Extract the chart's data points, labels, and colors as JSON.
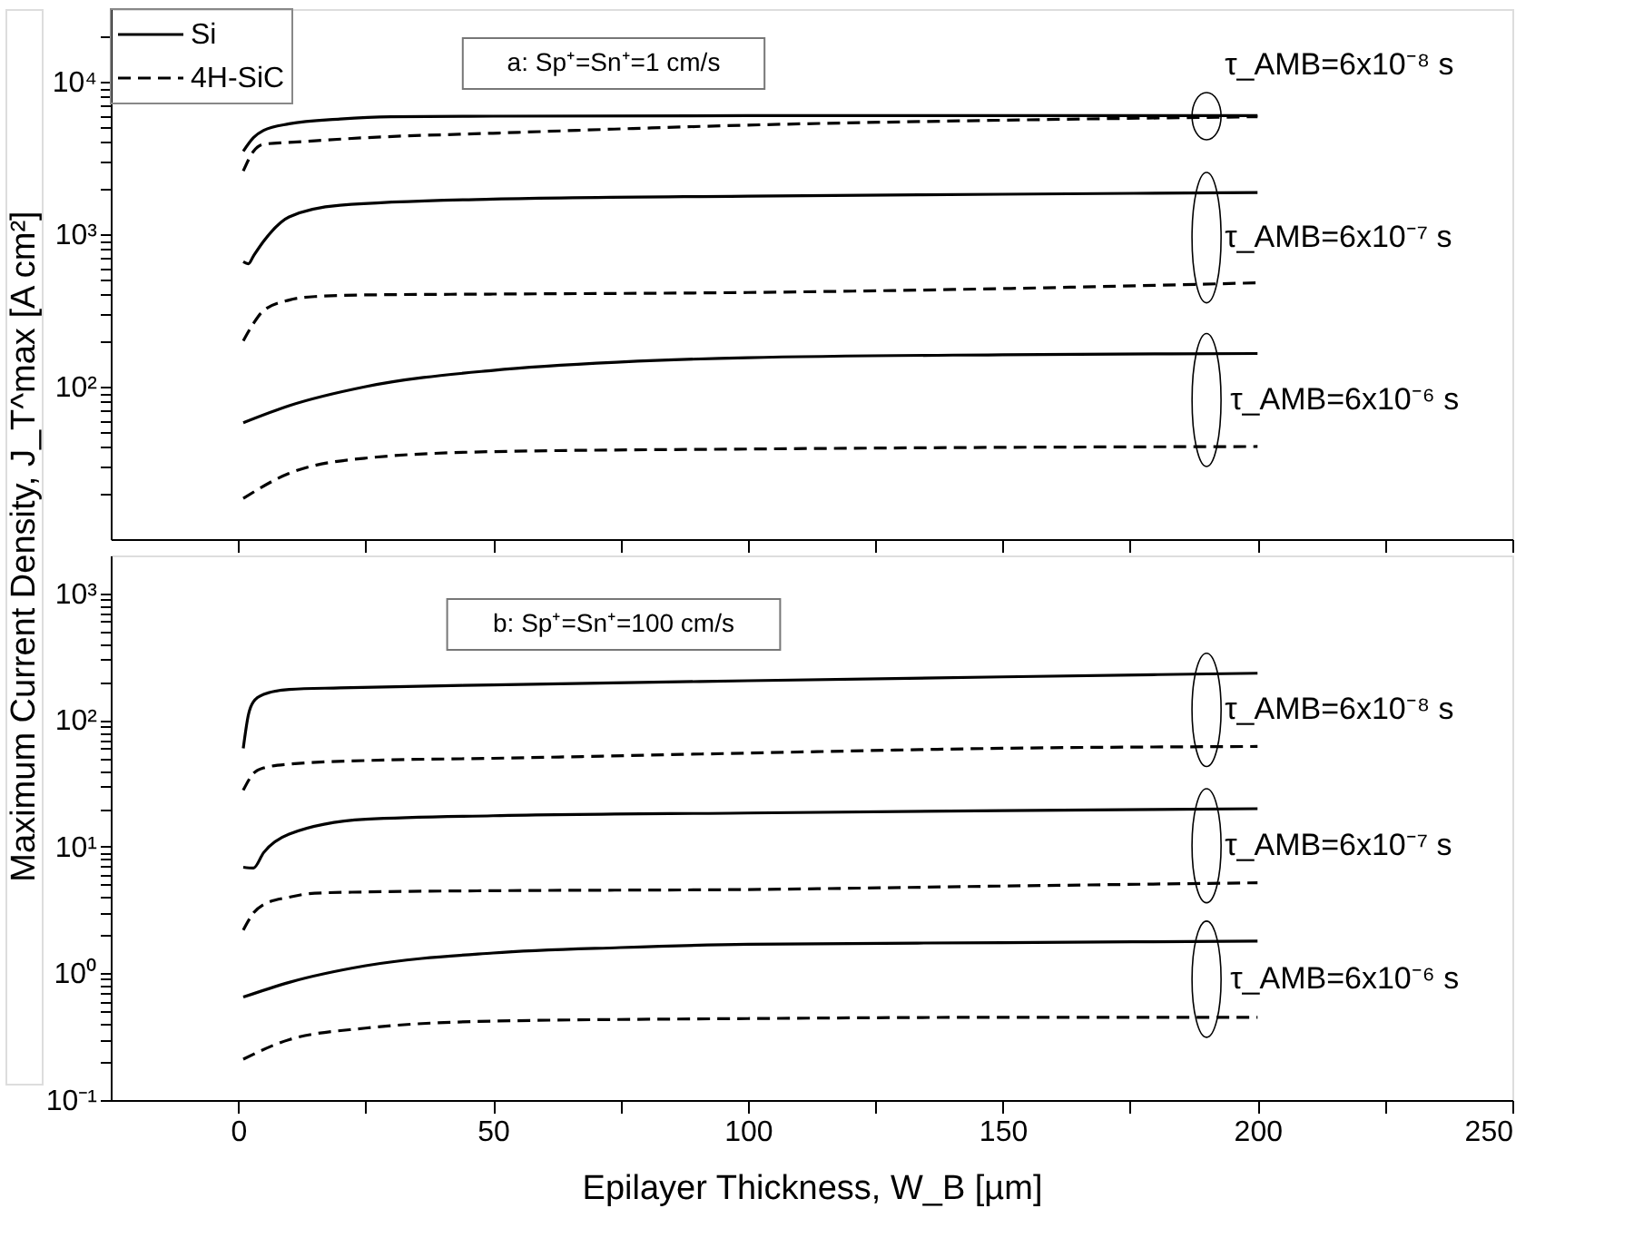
{
  "chart_data": [
    {
      "type": "line",
      "ylabel": "Maximum Current Density, J_T^max [A cm²]",
      "log": true,
      "grid": false,
      "legend": "top left",
      "tick_labels": "y",
      "xlim": [
        -25,
        250
      ],
      "xticks": [
        0,
        {
          "value": 25,
          "label": null
        },
        50,
        {
          "value": 75,
          "label": null
        },
        100,
        {
          "value": 125,
          "label": null
        },
        150,
        {
          "value": 175,
          "label": null
        },
        200,
        {
          "value": 225,
          "label": null
        },
        250
      ],
      "ylim": [
        10,
        30000
      ],
      "yticks": [
        {
          "value": 20,
          "label": null
        },
        {
          "value": 30,
          "label": null
        },
        {
          "value": 40,
          "label": null
        },
        {
          "value": 50,
          "label": null
        },
        {
          "value": 60,
          "label": null
        },
        {
          "value": 70,
          "label": null
        },
        {
          "value": 80,
          "label": null
        },
        {
          "value": 90,
          "label": null
        },
        {
          "value": 100,
          "label": "10²"
        },
        {
          "value": 200,
          "label": null
        },
        {
          "value": 300,
          "label": null
        },
        {
          "value": 400,
          "label": null
        },
        {
          "value": 500,
          "label": null
        },
        {
          "value": 600,
          "label": null
        },
        {
          "value": 700,
          "label": null
        },
        {
          "value": 800,
          "label": null
        },
        {
          "value": 900,
          "label": null
        },
        {
          "value": 1000,
          "label": "10³"
        },
        {
          "value": 2000,
          "label": null
        },
        {
          "value": 3000,
          "label": null
        },
        {
          "value": 4000,
          "label": null
        },
        {
          "value": 5000,
          "label": null
        },
        {
          "value": 6000,
          "label": null
        },
        {
          "value": 7000,
          "label": null
        },
        {
          "value": 8000,
          "label": null
        },
        {
          "value": 9000,
          "label": null
        },
        {
          "value": 10000,
          "label": "10⁴"
        },
        {
          "value": 20000,
          "label": null
        }
      ],
      "series": [
        {
          "name": "Si",
          "color": "#000000",
          "line_style": "solid",
          "x": [
            1,
            3,
            5,
            10,
            20,
            30,
            50,
            100,
            150,
            200
          ],
          "values": [
            3500,
            4300,
            4800,
            5300,
            5700,
            5900,
            5950,
            6000,
            6000,
            6000
          ]
        },
        {
          "name": "4H-SiC",
          "color": "#000000",
          "line_style": "dashed",
          "x": [
            1,
            3,
            5,
            10,
            25,
            50,
            100,
            150,
            200
          ],
          "values": [
            2600,
            3500,
            3900,
            4000,
            4300,
            4600,
            5200,
            5600,
            5900
          ]
        },
        {
          "color": "#000000",
          "line_style": "solid",
          "x": [
            1,
            2,
            3,
            5,
            10,
            20,
            50,
            100,
            150,
            200
          ],
          "values": [
            660,
            640,
            720,
            900,
            1300,
            1550,
            1700,
            1780,
            1830,
            1880
          ]
        },
        {
          "color": "#000000",
          "line_style": "dashed",
          "x": [
            1,
            3,
            5,
            10,
            15,
            25,
            50,
            100,
            150,
            200
          ],
          "values": [
            200,
            260,
            316,
            370,
            390,
            400,
            405,
            415,
            440,
            480
          ]
        },
        {
          "color": "#000000",
          "line_style": "solid",
          "x": [
            1,
            10,
            25,
            50,
            75,
            100,
            150,
            200
          ],
          "values": [
            58,
            75,
            100,
            128,
            145,
            155,
            162,
            165
          ]
        },
        {
          "color": "#000000",
          "line_style": "dashed",
          "x": [
            1,
            10,
            25,
            50,
            100,
            150,
            200
          ],
          "values": [
            18.5,
            27,
            34,
            37.5,
            39,
            40,
            40.5
          ]
        }
      ],
      "annotations": [
        "a: Sp⁺=Sn⁺=1 cm/s",
        "τ_AMB=6x10⁻⁸ s",
        "τ_AMB=6x10⁻⁷ s",
        "τ_AMB=6x10⁻⁶ s"
      ]
    },
    {
      "type": "line",
      "xlabel": "Epilayer Thickness, W_B [µm]",
      "log": true,
      "grid": false,
      "xlim": [
        -25,
        250
      ],
      "xticks": [
        0,
        {
          "value": 25,
          "label": null
        },
        50,
        {
          "value": 75,
          "label": null
        },
        100,
        {
          "value": 125,
          "label": null
        },
        150,
        {
          "value": 175,
          "label": null
        },
        200,
        {
          "value": 225,
          "label": null
        },
        250
      ],
      "ylim": [
        0.1,
        2000
      ],
      "yticks": [
        {
          "value": 0.1,
          "label": "10⁻¹"
        },
        {
          "value": 0.2,
          "label": null
        },
        {
          "value": 0.3,
          "label": null
        },
        {
          "value": 0.4,
          "label": null
        },
        {
          "value": 0.5,
          "label": null
        },
        {
          "value": 0.6,
          "label": null
        },
        {
          "value": 0.7,
          "label": null
        },
        {
          "value": 0.8,
          "label": null
        },
        {
          "value": 0.9,
          "label": null
        },
        {
          "value": 1,
          "label": "10⁰"
        },
        {
          "value": 2,
          "label": null
        },
        {
          "value": 3,
          "label": null
        },
        {
          "value": 4,
          "label": null
        },
        {
          "value": 5,
          "label": null
        },
        {
          "value": 6,
          "label": null
        },
        {
          "value": 7,
          "label": null
        },
        {
          "value": 8,
          "label": null
        },
        {
          "value": 9,
          "label": null
        },
        {
          "value": 10,
          "label": "10¹"
        },
        {
          "value": 20,
          "label": null
        },
        {
          "value": 30,
          "label": null
        },
        {
          "value": 40,
          "label": null
        },
        {
          "value": 50,
          "label": null
        },
        {
          "value": 60,
          "label": null
        },
        {
          "value": 70,
          "label": null
        },
        {
          "value": 80,
          "label": null
        },
        {
          "value": 90,
          "label": null
        },
        {
          "value": 100,
          "label": "10²"
        },
        {
          "value": 200,
          "label": null
        },
        {
          "value": 300,
          "label": null
        },
        {
          "value": 400,
          "label": null
        },
        {
          "value": 500,
          "label": null
        },
        {
          "value": 600,
          "label": null
        },
        {
          "value": 700,
          "label": null
        },
        {
          "value": 800,
          "label": null
        },
        {
          "value": 900,
          "label": null
        },
        {
          "value": 1000,
          "label": "10³"
        }
      ],
      "series": [
        {
          "color": "#000000",
          "line_style": "solid",
          "x": [
            1,
            2,
            3,
            5,
            10,
            20,
            50,
            100,
            150,
            200
          ],
          "values": [
            60,
            110,
            140,
            160,
            175,
            180,
            190,
            205,
            220,
            235
          ]
        },
        {
          "color": "#000000",
          "line_style": "dashed",
          "x": [
            1,
            3,
            5,
            10,
            25,
            50,
            100,
            150,
            200
          ],
          "values": [
            28,
            38,
            42,
            45,
            48,
            50,
            55,
            60,
            62
          ]
        },
        {
          "color": "#000000",
          "line_style": "solid",
          "x": [
            1,
            3,
            5,
            10,
            25,
            50,
            100,
            150,
            200
          ],
          "values": [
            6.9,
            6.8,
            9,
            12.6,
            16.5,
            17.6,
            18.5,
            19.3,
            20
          ]
        },
        {
          "color": "#000000",
          "line_style": "dashed",
          "x": [
            1,
            3,
            5,
            10,
            15,
            25,
            50,
            100,
            150,
            200
          ],
          "values": [
            2.2,
            3.0,
            3.5,
            4.0,
            4.3,
            4.4,
            4.5,
            4.6,
            4.9,
            5.2
          ]
        },
        {
          "color": "#000000",
          "line_style": "solid",
          "x": [
            1,
            10,
            25,
            50,
            75,
            100,
            150,
            200
          ],
          "values": [
            0.65,
            0.85,
            1.15,
            1.45,
            1.6,
            1.7,
            1.75,
            1.8
          ]
        },
        {
          "color": "#000000",
          "line_style": "dashed",
          "x": [
            1,
            10,
            25,
            50,
            100,
            150,
            200
          ],
          "values": [
            0.21,
            0.3,
            0.37,
            0.42,
            0.44,
            0.45,
            0.45
          ]
        }
      ],
      "annotations": [
        "b: Sp⁺=Sn⁺=100 cm/s",
        "τ_AMB=6x10⁻⁸ s",
        "τ_AMB=6x10⁻⁷ s",
        "τ_AMB=6x10⁻⁶ s"
      ]
    }
  ]
}
